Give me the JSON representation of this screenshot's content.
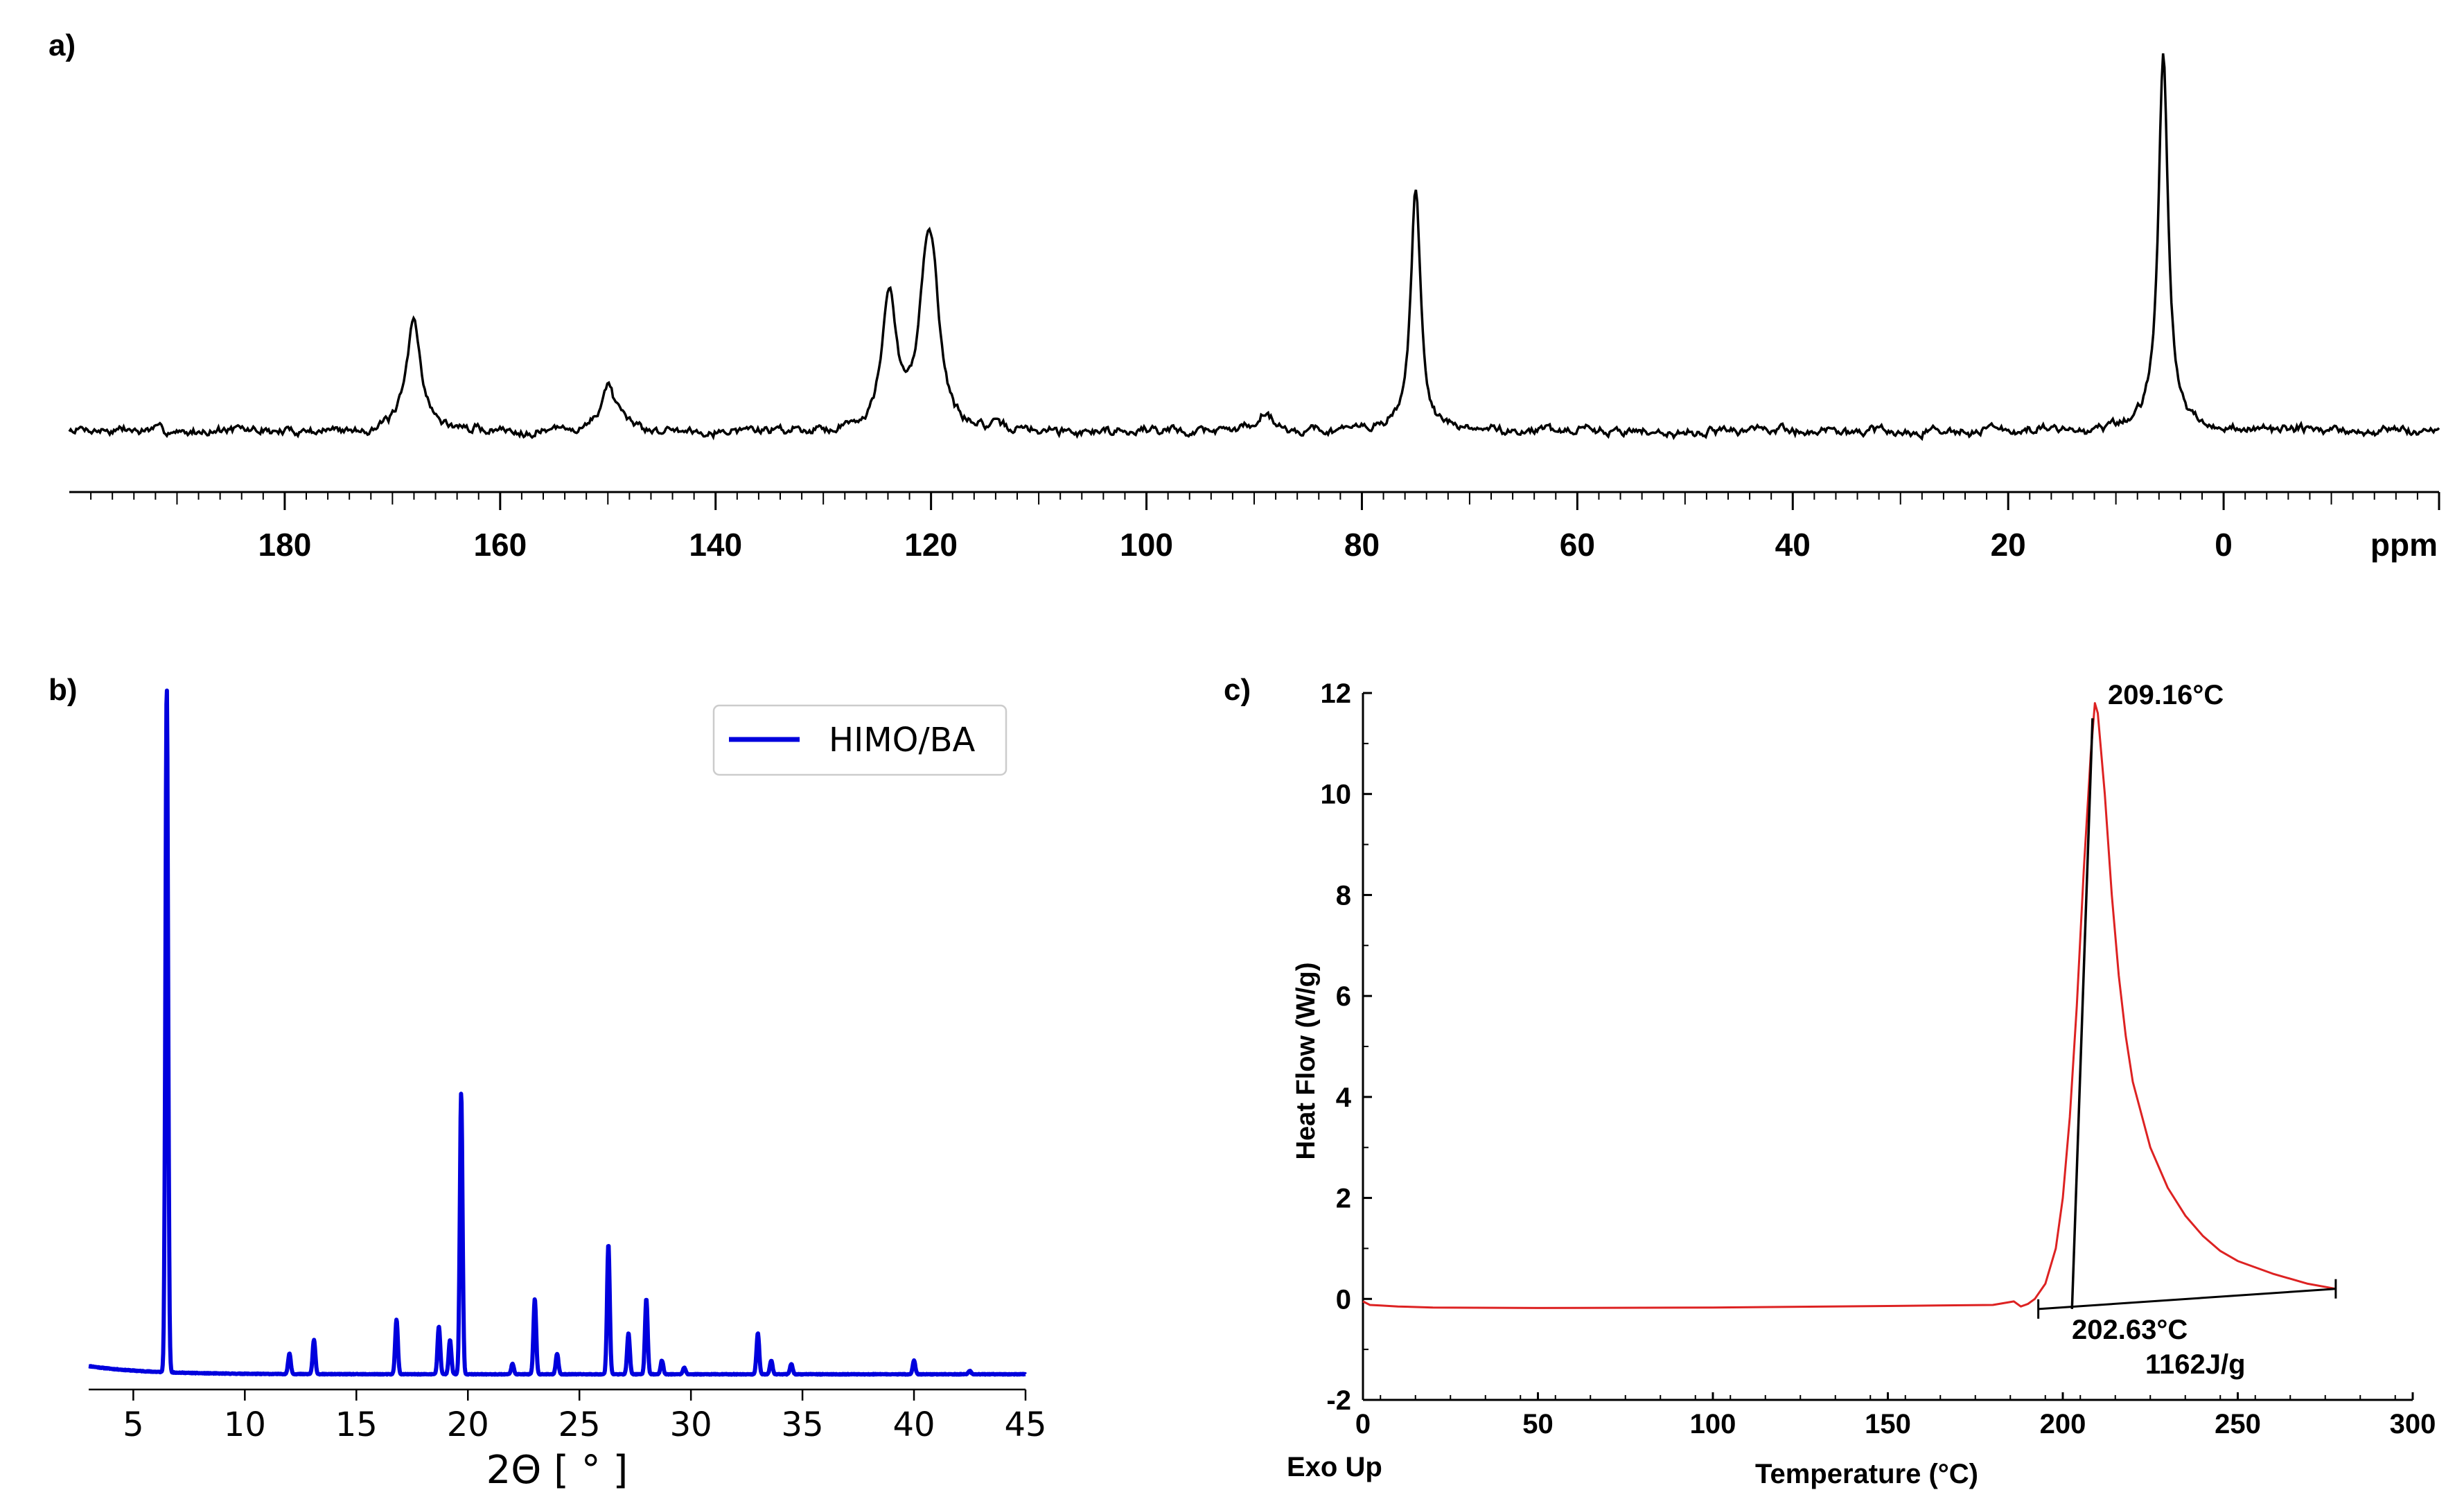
{
  "chart_data": [
    {
      "panel": "a)",
      "type": "line",
      "title": "",
      "xlabel": "",
      "ylabel": "",
      "x_unit": "ppm",
      "xlim": [
        200,
        -20
      ],
      "x_reversed": true,
      "xticks": [
        180,
        160,
        140,
        120,
        100,
        80,
        60,
        40,
        20,
        0
      ],
      "xtick_labels": [
        "180",
        "160",
        "140",
        "120",
        "100",
        "80",
        "60",
        "40",
        "20",
        "0"
      ],
      "y_axis_shown": false,
      "color": "#000000",
      "peaks": [
        {
          "x": 168.0,
          "height": 0.29
        },
        {
          "x": 150.0,
          "height": 0.12
        },
        {
          "x": 123.9,
          "height": 0.34
        },
        {
          "x": 120.5,
          "height": 0.3
        },
        {
          "x": 119.8,
          "height": 0.3
        },
        {
          "x": 89.0,
          "height": 0.05
        },
        {
          "x": 75.0,
          "height": 0.63
        },
        {
          "x": 5.6,
          "height": 0.96
        }
      ]
    },
    {
      "panel": "b)",
      "type": "line",
      "title": "",
      "xlabel": "2Θ [ ° ]",
      "ylabel": "",
      "xlim": [
        3,
        45
      ],
      "xticks": [
        5,
        10,
        15,
        20,
        25,
        30,
        35,
        40,
        45
      ],
      "y_axis_shown": false,
      "legend": {
        "position": "top-right",
        "entries": [
          "HIMO/BA"
        ]
      },
      "series": [
        {
          "name": "HIMO/BA",
          "color": "#0000dd",
          "peaks": [
            {
              "x": 6.5,
              "height": 1.0
            },
            {
              "x": 12.0,
              "height": 0.03
            },
            {
              "x": 13.1,
              "height": 0.05
            },
            {
              "x": 16.8,
              "height": 0.08
            },
            {
              "x": 18.7,
              "height": 0.07
            },
            {
              "x": 19.2,
              "height": 0.05
            },
            {
              "x": 19.7,
              "height": 0.41
            },
            {
              "x": 22.0,
              "height": 0.015
            },
            {
              "x": 23.0,
              "height": 0.11
            },
            {
              "x": 24.0,
              "height": 0.03
            },
            {
              "x": 26.3,
              "height": 0.19
            },
            {
              "x": 27.2,
              "height": 0.06
            },
            {
              "x": 28.0,
              "height": 0.11
            },
            {
              "x": 28.7,
              "height": 0.02
            },
            {
              "x": 29.7,
              "height": 0.01
            },
            {
              "x": 33.0,
              "height": 0.06
            },
            {
              "x": 33.6,
              "height": 0.02
            },
            {
              "x": 34.5,
              "height": 0.015
            },
            {
              "x": 40.0,
              "height": 0.02
            },
            {
              "x": 42.5,
              "height": 0.005
            }
          ]
        }
      ]
    },
    {
      "panel": "c)",
      "type": "line",
      "title": "",
      "xlabel": "Temperature (°C)",
      "ylabel": "Heat Flow (W/g)",
      "corner_label": "Exo Up",
      "xlim": [
        0,
        300
      ],
      "ylim": [
        -2,
        12
      ],
      "xticks": [
        0,
        50,
        100,
        150,
        200,
        250,
        300
      ],
      "yticks": [
        -2,
        0,
        2,
        4,
        6,
        8,
        10,
        12
      ],
      "series": [
        {
          "name": "",
          "color": "#dd2222",
          "x": [
            0,
            2,
            5,
            10,
            20,
            50,
            100,
            150,
            180,
            186,
            188,
            190,
            192,
            195,
            198,
            200,
            202,
            204,
            206,
            208,
            209.16,
            210,
            212,
            214,
            216,
            218,
            220,
            225,
            230,
            235,
            240,
            245,
            250,
            260,
            270,
            278
          ],
          "y": [
            -0.05,
            -0.12,
            -0.13,
            -0.15,
            -0.17,
            -0.18,
            -0.17,
            -0.14,
            -0.12,
            -0.05,
            -0.15,
            -0.1,
            0.0,
            0.3,
            1.0,
            2.0,
            3.6,
            5.8,
            8.5,
            10.8,
            11.8,
            11.6,
            10.0,
            8.0,
            6.4,
            5.2,
            4.3,
            3.0,
            2.2,
            1.65,
            1.25,
            0.95,
            0.75,
            0.5,
            0.3,
            0.2
          ]
        }
      ],
      "annotations": {
        "peak_label": "209.16°C",
        "peak": {
          "x": 209.16,
          "y": 11.8
        },
        "onset_label": "202.63°C",
        "enthalpy_label": "1162J/g",
        "tangent_line": {
          "x": [
            202.63,
            208.5
          ],
          "y": [
            -0.2,
            11.5
          ]
        },
        "baseline": {
          "x": [
            193,
            278
          ],
          "y": [
            -0.2,
            0.2
          ]
        }
      }
    }
  ]
}
